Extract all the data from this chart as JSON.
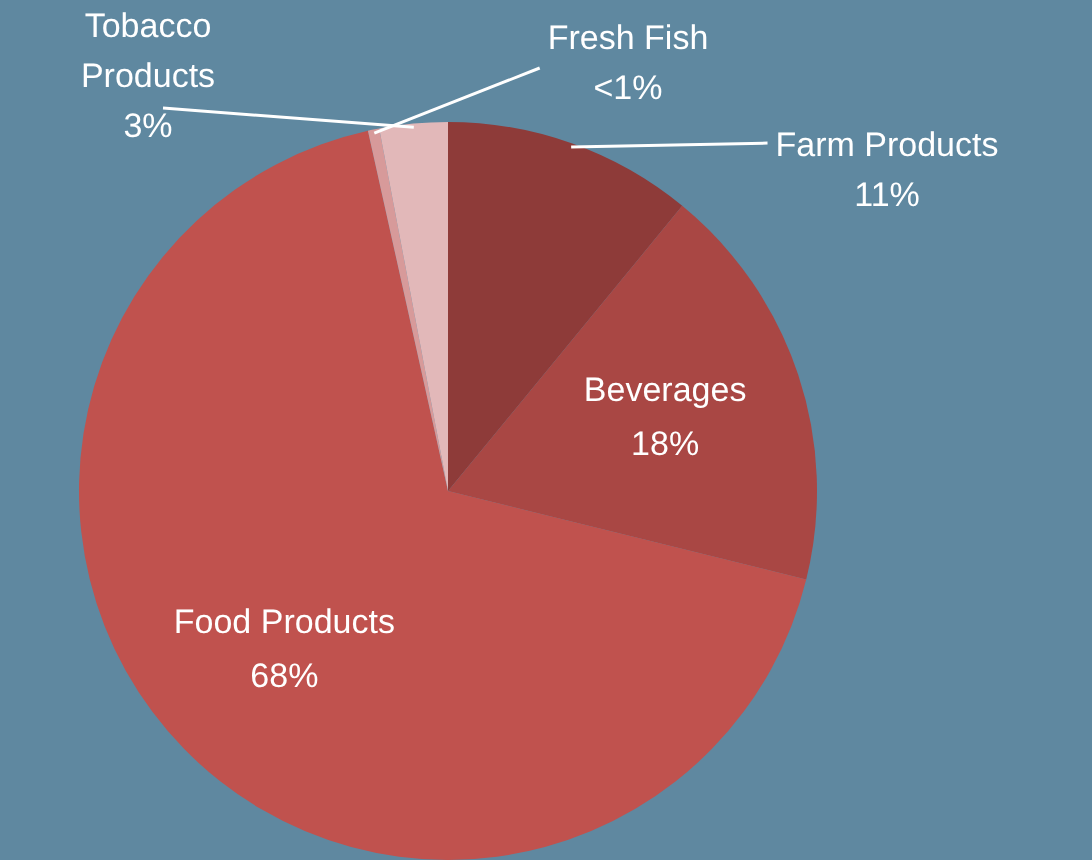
{
  "chart_data": {
    "type": "pie",
    "categories": [
      "Farm Products",
      "Beverages",
      "Food Products",
      "Fresh Fish",
      "Tobacco Products"
    ],
    "values": [
      11,
      18,
      68,
      0.5,
      3
    ],
    "value_labels": [
      "11%",
      "18%",
      "68%",
      "<1%",
      "3%"
    ],
    "colors": [
      "#8e3b39",
      "#a94744",
      "#c0524e",
      "#d79a9a",
      "#e2b8b9"
    ],
    "legend": false
  }
}
